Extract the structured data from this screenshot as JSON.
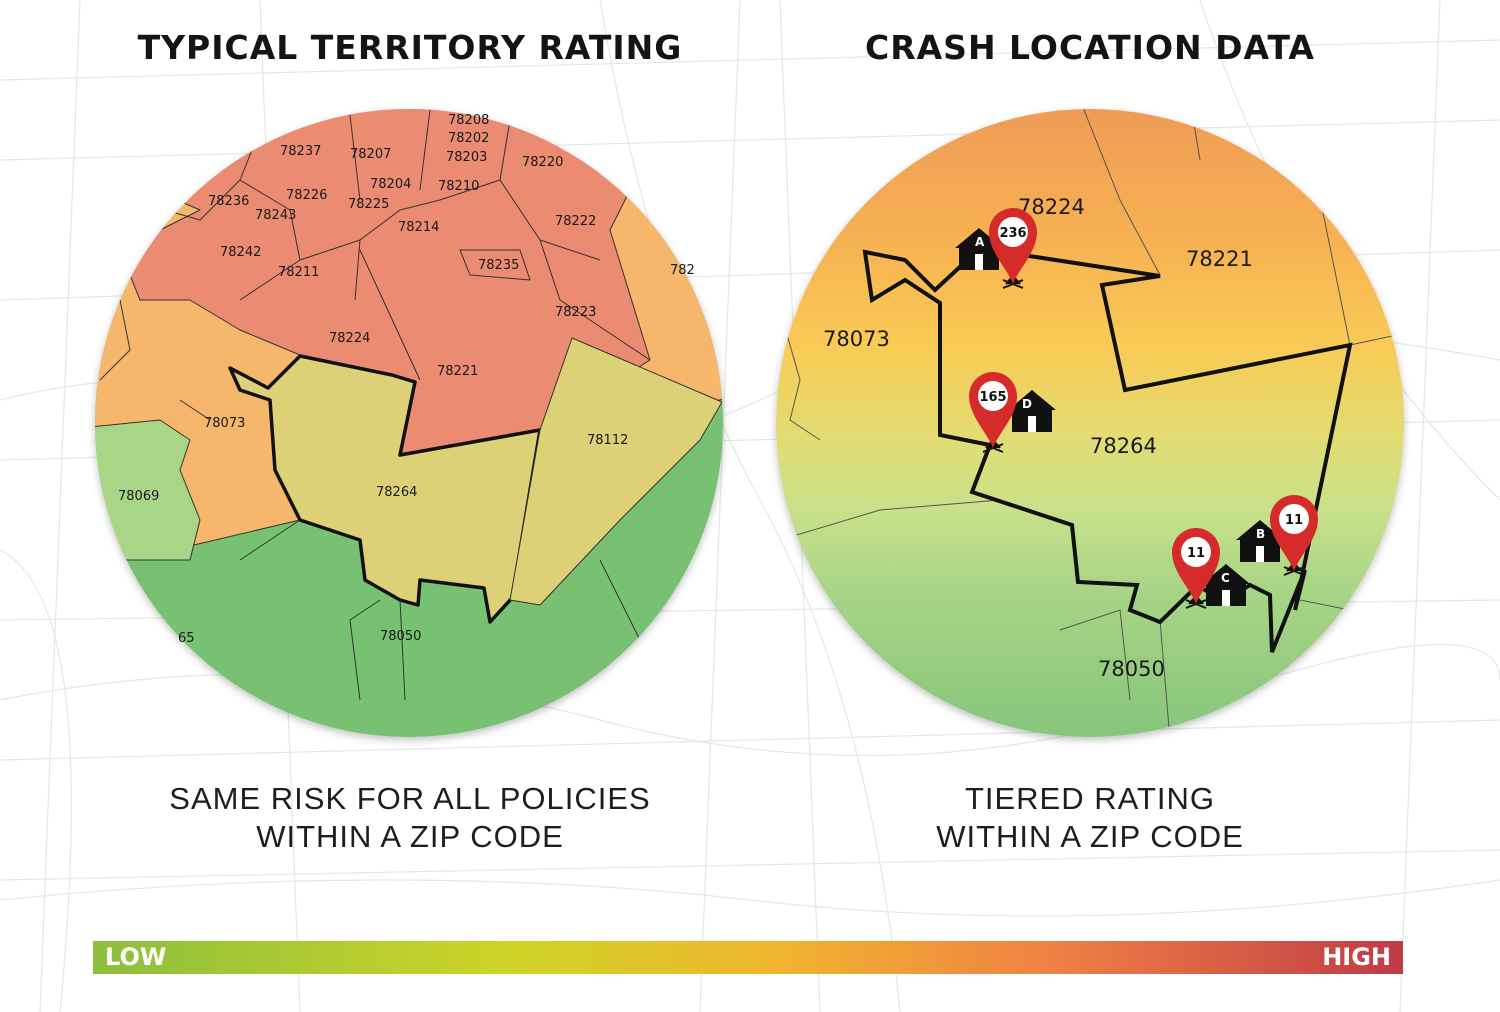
{
  "left_panel": {
    "title": "TYPICAL TERRITORY RATING",
    "caption_line1": "SAME RISK FOR ALL POLICIES",
    "caption_line2": "WITHIN A ZIP CODE",
    "zip_labels": [
      "78208",
      "78202",
      "78203",
      "78237",
      "78207",
      "78220",
      "78204",
      "78210",
      "78236",
      "78226",
      "78225",
      "78243",
      "78214",
      "78222",
      "78242",
      "78211",
      "78235",
      "78224",
      "78223",
      "78221",
      "78073",
      "78112",
      "78264",
      "78069",
      "78050",
      "782",
      "65"
    ],
    "colors": {
      "red_zone": "#ea8b72",
      "orange_zone": "#f6b66b",
      "yellow_zone": "#ddd178",
      "green_zone": "#78c172",
      "light_green_zone": "#a9d587"
    }
  },
  "right_panel": {
    "title": "CRASH LOCATION DATA",
    "caption_line1": "TIERED RATING",
    "caption_line2": "WITHIN A ZIP CODE",
    "zip_labels": [
      "78224",
      "78221",
      "78073",
      "78264",
      "78050"
    ],
    "pins": [
      {
        "count": "236",
        "icon": "map-pin-icon"
      },
      {
        "count": "165",
        "icon": "map-pin-icon"
      },
      {
        "count": "11",
        "icon": "map-pin-icon"
      },
      {
        "count": "11",
        "icon": "map-pin-icon"
      }
    ],
    "houses": [
      "A",
      "D",
      "B",
      "C"
    ],
    "pin_color": "#d62b2b"
  },
  "legend": {
    "low_label": "LOW",
    "high_label": "HIGH"
  }
}
